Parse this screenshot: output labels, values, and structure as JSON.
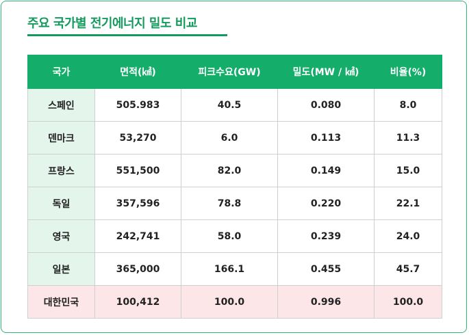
{
  "title": "주요 국가별 전기에너지 밀도 비교",
  "colors": {
    "accent": "#14ad6a",
    "country_cell": "#e4f5ec",
    "highlight_row": "#fde6e8"
  },
  "table": {
    "headers": [
      "국가",
      "면적(㎢)",
      "피크수요(GW)",
      "밀도(MW / ㎢)",
      "비율(%)"
    ],
    "rows": [
      [
        "스페인",
        "505.983",
        "40.5",
        "0.080",
        "8.0"
      ],
      [
        "덴마크",
        "53,270",
        "6.0",
        "0.113",
        "11.3"
      ],
      [
        "프랑스",
        "551,500",
        "82.0",
        "0.149",
        "15.0"
      ],
      [
        "독일",
        "357,596",
        "78.8",
        "0.220",
        "22.1"
      ],
      [
        "영국",
        "242,741",
        "58.0",
        "0.239",
        "24.0"
      ],
      [
        "일본",
        "365,000",
        "166.1",
        "0.455",
        "45.7"
      ],
      [
        "대한민국",
        "100,412",
        "100.0",
        "0.996",
        "100.0"
      ]
    ]
  }
}
